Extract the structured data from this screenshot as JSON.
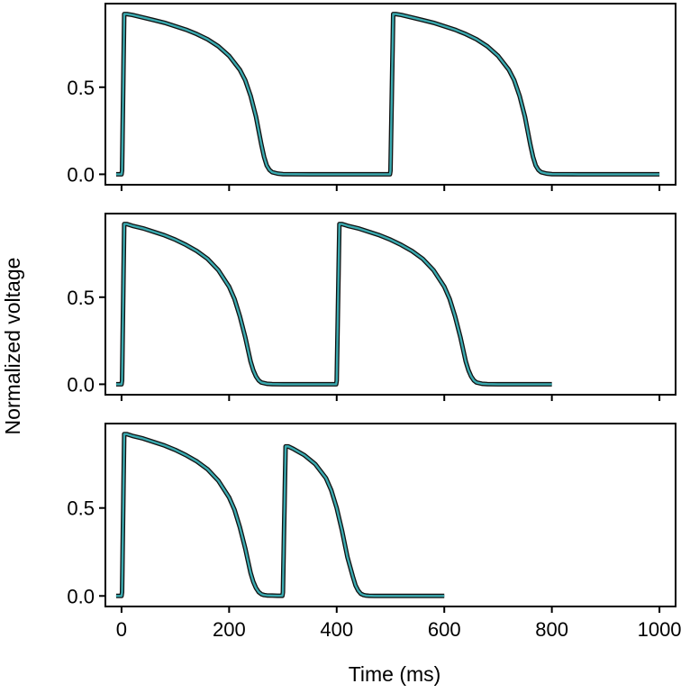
{
  "figure": {
    "xlabel": "Time (ms)",
    "ylabel": "Normalized voltage"
  },
  "chart_data": [
    {
      "type": "line",
      "xlabel": "",
      "ylabel": "",
      "xlim": [
        -30,
        1030
      ],
      "ylim": [
        -0.06,
        0.98
      ],
      "xticks": [
        0,
        200,
        400,
        600,
        800,
        1000
      ],
      "yticks": [
        0.0,
        0.5
      ],
      "ytick_labels": [
        "0.0",
        "0.5"
      ],
      "xtick_labels_shown": false,
      "series": [
        {
          "x": [
            -10,
            0,
            1,
            5,
            10,
            20,
            40,
            60,
            80,
            100,
            120,
            140,
            160,
            180,
            200,
            220,
            230,
            240,
            250,
            255,
            260,
            265,
            270,
            275,
            280,
            290,
            300,
            350,
            400,
            450,
            499,
            500,
            505,
            510,
            520,
            540,
            560,
            580,
            600,
            620,
            640,
            660,
            680,
            700,
            720,
            730,
            740,
            750,
            755,
            760,
            765,
            770,
            775,
            780,
            790,
            800,
            850,
            900,
            950,
            1000
          ],
          "y": [
            0.0,
            0.0,
            0.02,
            0.92,
            0.92,
            0.915,
            0.9,
            0.885,
            0.87,
            0.85,
            0.83,
            0.805,
            0.775,
            0.735,
            0.68,
            0.6,
            0.54,
            0.45,
            0.33,
            0.25,
            0.17,
            0.1,
            0.05,
            0.025,
            0.012,
            0.004,
            0.001,
            0.0,
            0.0,
            0.0,
            0.0,
            0.02,
            0.92,
            0.92,
            0.915,
            0.9,
            0.885,
            0.87,
            0.85,
            0.83,
            0.805,
            0.775,
            0.735,
            0.68,
            0.6,
            0.54,
            0.45,
            0.33,
            0.25,
            0.17,
            0.1,
            0.05,
            0.025,
            0.012,
            0.004,
            0.001,
            0.0,
            0.0,
            0.0,
            0.0
          ]
        }
      ]
    },
    {
      "type": "line",
      "xlabel": "",
      "ylabel": "",
      "xlim": [
        -30,
        1030
      ],
      "ylim": [
        -0.06,
        0.98
      ],
      "xticks": [
        0,
        200,
        400,
        600,
        800,
        1000
      ],
      "yticks": [
        0.0,
        0.5
      ],
      "ytick_labels": [
        "0.0",
        "0.5"
      ],
      "xtick_labels_shown": false,
      "series": [
        {
          "x": [
            -10,
            0,
            1,
            5,
            10,
            20,
            40,
            60,
            80,
            100,
            120,
            140,
            160,
            180,
            200,
            210,
            220,
            230,
            235,
            240,
            245,
            250,
            255,
            260,
            270,
            280,
            300,
            350,
            399,
            400,
            405,
            410,
            420,
            440,
            460,
            480,
            500,
            520,
            540,
            560,
            580,
            600,
            610,
            620,
            630,
            635,
            640,
            645,
            650,
            655,
            660,
            670,
            680,
            700,
            750,
            800
          ],
          "y": [
            0.0,
            0.0,
            0.02,
            0.92,
            0.92,
            0.91,
            0.895,
            0.875,
            0.855,
            0.83,
            0.8,
            0.765,
            0.72,
            0.655,
            0.56,
            0.49,
            0.39,
            0.27,
            0.2,
            0.13,
            0.08,
            0.045,
            0.022,
            0.01,
            0.003,
            0.001,
            0.0,
            0.0,
            0.0,
            0.02,
            0.92,
            0.92,
            0.91,
            0.895,
            0.875,
            0.855,
            0.83,
            0.8,
            0.765,
            0.72,
            0.655,
            0.56,
            0.49,
            0.39,
            0.27,
            0.2,
            0.13,
            0.08,
            0.045,
            0.022,
            0.01,
            0.003,
            0.001,
            0.0,
            0.0,
            0.0
          ]
        }
      ]
    },
    {
      "type": "line",
      "xlabel": "Time (ms)",
      "ylabel": "",
      "xlim": [
        -30,
        1030
      ],
      "ylim": [
        -0.06,
        0.98
      ],
      "xticks": [
        0,
        200,
        400,
        600,
        800,
        1000
      ],
      "xtick_labels": [
        "0",
        "200",
        "400",
        "600",
        "800",
        "1000"
      ],
      "yticks": [
        0.0,
        0.5
      ],
      "ytick_labels": [
        "0.0",
        "0.5"
      ],
      "xtick_labels_shown": true,
      "series": [
        {
          "x": [
            -10,
            0,
            1,
            5,
            10,
            20,
            40,
            60,
            80,
            100,
            120,
            140,
            160,
            180,
            200,
            210,
            220,
            230,
            235,
            240,
            245,
            250,
            255,
            260,
            265,
            270,
            280,
            290,
            299,
            300,
            305,
            310,
            320,
            340,
            360,
            380,
            390,
            400,
            410,
            420,
            430,
            435,
            440,
            445,
            450,
            455,
            460,
            470,
            480,
            500,
            550,
            600
          ],
          "y": [
            0.0,
            0.0,
            0.02,
            0.92,
            0.92,
            0.91,
            0.895,
            0.875,
            0.855,
            0.83,
            0.8,
            0.765,
            0.72,
            0.655,
            0.56,
            0.49,
            0.39,
            0.27,
            0.2,
            0.13,
            0.08,
            0.045,
            0.022,
            0.01,
            0.005,
            0.003,
            0.002,
            0.001,
            0.001,
            0.02,
            0.85,
            0.85,
            0.835,
            0.8,
            0.75,
            0.67,
            0.6,
            0.5,
            0.37,
            0.22,
            0.11,
            0.06,
            0.03,
            0.012,
            0.005,
            0.002,
            0.001,
            0.0,
            0.0,
            0.0,
            0.0,
            0.0
          ]
        }
      ]
    }
  ],
  "colors": {
    "trace": "#3aaab0",
    "outline": "#111111",
    "axes": "#000000"
  }
}
